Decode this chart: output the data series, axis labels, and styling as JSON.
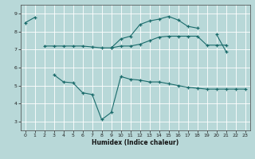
{
  "x_values": [
    0,
    1,
    2,
    3,
    4,
    5,
    6,
    7,
    8,
    9,
    10,
    11,
    12,
    13,
    14,
    15,
    16,
    17,
    18,
    19,
    20,
    21,
    22,
    23
  ],
  "line1": [
    8.5,
    8.8,
    null,
    null,
    null,
    null,
    null,
    null,
    null,
    7.1,
    7.6,
    7.75,
    8.4,
    8.6,
    8.7,
    8.85,
    8.65,
    8.3,
    8.2,
    null,
    7.85,
    6.9,
    null,
    null
  ],
  "line2": [
    null,
    null,
    7.2,
    7.2,
    7.2,
    7.2,
    7.2,
    7.15,
    7.1,
    7.1,
    7.2,
    7.2,
    7.3,
    7.5,
    7.7,
    7.75,
    7.75,
    7.75,
    7.75,
    7.25,
    7.25,
    7.25,
    null,
    null
  ],
  "line3": [
    null,
    null,
    null,
    5.6,
    5.2,
    5.15,
    4.6,
    4.5,
    3.1,
    3.5,
    5.5,
    5.35,
    5.3,
    5.2,
    5.2,
    5.1,
    5.0,
    4.9,
    4.85,
    4.8,
    4.8,
    4.8,
    4.8,
    4.8
  ],
  "background_color": "#b8d8d8",
  "line_color": "#1a6b6b",
  "grid_color": "#ffffff",
  "xlabel": "Humidex (Indice chaleur)",
  "ylim": [
    2.5,
    9.5
  ],
  "xlim": [
    -0.5,
    23.5
  ],
  "yticks": [
    3,
    4,
    5,
    6,
    7,
    8,
    9
  ],
  "xticks": [
    0,
    1,
    2,
    3,
    4,
    5,
    6,
    7,
    8,
    9,
    10,
    11,
    12,
    13,
    14,
    15,
    16,
    17,
    18,
    19,
    20,
    21,
    22,
    23
  ]
}
